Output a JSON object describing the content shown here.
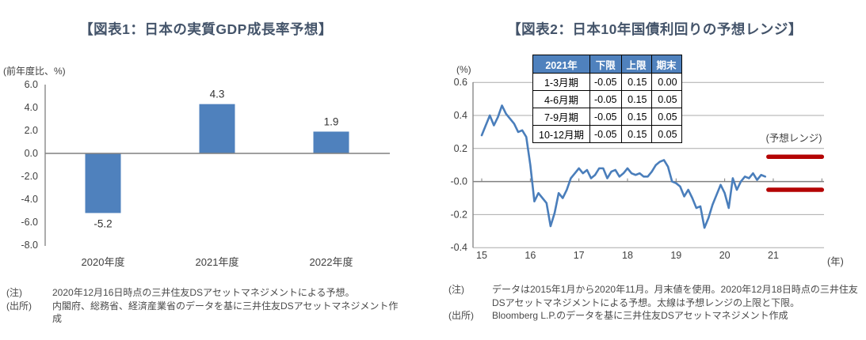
{
  "figure1": {
    "title": "【図表1：日本の実質GDP成長率予想】",
    "y_axis_unit": "(前年度比、%)",
    "note_label": "(注)",
    "note_text": "2020年12月16日時点の三井住友DSアセットマネジメントによる予想。",
    "source_label": "(出所)",
    "source_text": "内閣府、総務省、経済産業省のデータを基に三井住友DSアセットマネジメント作成"
  },
  "figure2": {
    "title": "【図表2：日本10年国債利回りの予想レンジ】",
    "y_axis_unit": "(%)",
    "x_axis_unit": "(年)",
    "forecast_range_label": "(予想レンジ)",
    "table": {
      "headers": [
        "2021年",
        "下限",
        "上限",
        "期末"
      ],
      "rows": [
        [
          "1-3月期",
          "-0.05",
          "0.15",
          "0.00"
        ],
        [
          "4-6月期",
          "-0.05",
          "0.15",
          "0.05"
        ],
        [
          "7-9月期",
          "-0.05",
          "0.15",
          "0.05"
        ],
        [
          "10-12月期",
          "-0.05",
          "0.15",
          "0.05"
        ]
      ]
    },
    "note_label": "(注)",
    "note_text": "データは2015年1月から2020年11月。月末値を使用。2020年12月18日時点の三井住友DSアセットマネジメントによる予想。太線は予想レンジの上限と下限。",
    "source_label": "(出所)",
    "source_text": "Bloomberg L.P.のデータを基に三井住友DSアセットマネジメント作成"
  },
  "chart_data": [
    {
      "type": "bar",
      "title": "日本の実質GDP成長率予想",
      "ylabel": "(前年度比、%)",
      "categories": [
        "2020年度",
        "2021年度",
        "2022年度"
      ],
      "values": [
        -5.2,
        4.3,
        1.9
      ],
      "ylim": [
        -8.0,
        6.0
      ],
      "ytick_step": 2.0,
      "grid": false,
      "bar_color": "#4F81BD",
      "axis_color": "#808080"
    },
    {
      "type": "line",
      "title": "日本10年国債利回りの予想レンジ",
      "ylabel": "(%)",
      "xlabel": "(年)",
      "x_period": "monthly 2015-01 to 2020-11, month-end values",
      "x_ticks": [
        "15",
        "16",
        "17",
        "18",
        "19",
        "20",
        "21"
      ],
      "ylim": [
        -0.4,
        0.6
      ],
      "ytick_step": 0.2,
      "grid": true,
      "line_color": "#4A7EBB",
      "values": [
        0.28,
        0.34,
        0.4,
        0.34,
        0.39,
        0.46,
        0.41,
        0.38,
        0.35,
        0.3,
        0.31,
        0.27,
        0.1,
        -0.12,
        -0.07,
        -0.1,
        -0.13,
        -0.27,
        -0.19,
        -0.07,
        -0.1,
        -0.05,
        0.02,
        0.05,
        0.08,
        0.05,
        0.07,
        0.02,
        0.04,
        0.08,
        0.08,
        0.02,
        0.06,
        0.07,
        0.03,
        0.05,
        0.08,
        0.05,
        0.04,
        0.05,
        0.03,
        0.03,
        0.06,
        0.1,
        0.12,
        0.13,
        0.09,
        0.0,
        -0.01,
        -0.03,
        -0.09,
        -0.05,
        -0.1,
        -0.16,
        -0.15,
        -0.28,
        -0.22,
        -0.14,
        -0.08,
        -0.02,
        -0.07,
        -0.16,
        0.02,
        -0.05,
        0.0,
        0.03,
        0.02,
        0.05,
        0.01,
        0.04,
        0.03
      ],
      "forecast": {
        "label": "(予想レンジ)",
        "upper": 0.15,
        "lower": -0.05,
        "color": "#B40404",
        "x_range_years_from_2015": [
          5.9,
          7.0
        ]
      }
    }
  ]
}
